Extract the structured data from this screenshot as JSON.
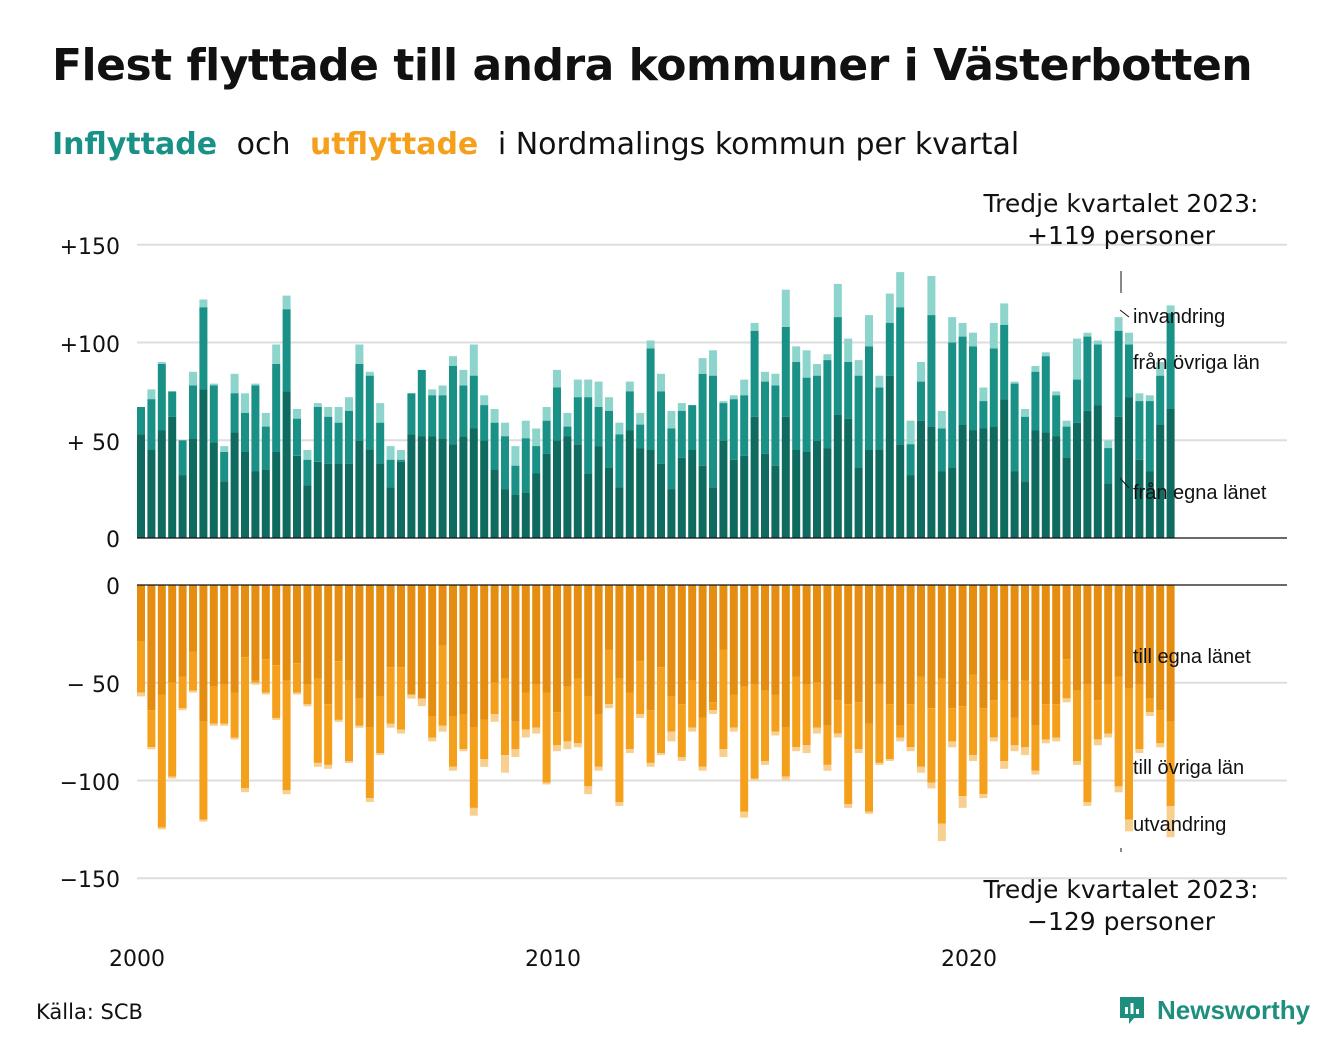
{
  "title": "Flest flyttade till andra kommuner i Västerbotten",
  "subtitle": {
    "in_word": "Inflyttade",
    "and_word": "och",
    "out_word": "utflyttade",
    "rest": "i Nordmalings kommun per kvartal"
  },
  "source": "Källa: SCB",
  "brand": "Newsworthy",
  "colors": {
    "in_own": "#0f6b5f",
    "in_other": "#199187",
    "in_immigration": "#8dd5cc",
    "out_own": "#e48d10",
    "out_other": "#f5a01c",
    "out_emigration": "#f7cf8f",
    "grid": "#dddddd",
    "in_text": "#199187",
    "out_text": "#f5a01c"
  },
  "chart_data": {
    "type": "bar",
    "stacked": true,
    "x_unit": "quarter",
    "first_quarter": "2000 Q1",
    "last_quarter": "2023 Q3",
    "xtick_labels": [
      "2000",
      "2010",
      "2020"
    ],
    "ytick_labels_in": [
      "0",
      "+ 50",
      "+100",
      "+150"
    ],
    "ytick_labels_out": [
      "0",
      "− 50",
      "−100",
      "−150"
    ],
    "ylim_in": [
      0,
      150
    ],
    "ylim_out": [
      -150,
      0
    ],
    "grid": true,
    "series_labels": {
      "in_immigration": "invandring",
      "in_other": "från övriga län",
      "in_own": "från egna länet",
      "out_own": "till egna länet",
      "out_other": "till övriga län",
      "out_emigration": "utvandring"
    },
    "annotations": {
      "in_line1": "Tredje kvartalet 2023:",
      "in_line2": "+119 personer",
      "out_line1": "Tredje kvartalet 2023:",
      "out_line2": "−129 personer"
    },
    "in_total": [
      67,
      76,
      90,
      75,
      50,
      85,
      122,
      79,
      47,
      84,
      74,
      79,
      64,
      99,
      124,
      66,
      45,
      69,
      67,
      67,
      72,
      99,
      85,
      69,
      47,
      45,
      74,
      86,
      76,
      78,
      93,
      86,
      99,
      73,
      66,
      59,
      47,
      60,
      56,
      67,
      86,
      64,
      81,
      81,
      80,
      72,
      59,
      80,
      64,
      101,
      84,
      65,
      69,
      68,
      92,
      96,
      70,
      73,
      81,
      110,
      85,
      84,
      127,
      98,
      96,
      89,
      94,
      130,
      102,
      91,
      114,
      83,
      125,
      136,
      60,
      90,
      134,
      65,
      113,
      110,
      105,
      77,
      110,
      120,
      80,
      66,
      88,
      95,
      75,
      60,
      102,
      105,
      101,
      50,
      113,
      105,
      74,
      73,
      90,
      119
    ],
    "in_other_top": [
      67,
      71,
      89,
      75,
      50,
      78,
      118,
      78,
      44,
      74,
      64,
      78,
      57,
      89,
      117,
      61,
      40,
      67,
      62,
      59,
      65,
      89,
      83,
      59,
      40,
      40,
      74,
      86,
      73,
      73,
      88,
      78,
      83,
      68,
      59,
      52,
      37,
      51,
      47,
      60,
      77,
      57,
      72,
      72,
      67,
      65,
      53,
      75,
      58,
      97,
      75,
      56,
      65,
      68,
      84,
      83,
      69,
      71,
      73,
      106,
      80,
      78,
      108,
      90,
      82,
      83,
      91,
      113,
      90,
      83,
      98,
      77,
      110,
      118,
      48,
      80,
      114,
      56,
      100,
      103,
      98,
      70,
      97,
      109,
      79,
      62,
      85,
      93,
      73,
      57,
      81,
      103,
      99,
      46,
      106,
      99,
      70,
      70,
      83,
      115
    ],
    "in_own": [
      53,
      45,
      55,
      62,
      32,
      51,
      76,
      49,
      29,
      54,
      44,
      34,
      35,
      44,
      75,
      42,
      27,
      39,
      38,
      38,
      38,
      50,
      45,
      38,
      26,
      39,
      53,
      52,
      52,
      51,
      48,
      52,
      56,
      50,
      35,
      25,
      22,
      23,
      33,
      43,
      50,
      52,
      48,
      33,
      47,
      36,
      26,
      55,
      46,
      45,
      38,
      25,
      41,
      45,
      37,
      26,
      50,
      40,
      42,
      62,
      43,
      37,
      62,
      45,
      44,
      50,
      46,
      63,
      61,
      36,
      45,
      45,
      83,
      48,
      32,
      60,
      57,
      34,
      36,
      58,
      55,
      56,
      57,
      71,
      34,
      29,
      55,
      54,
      52,
      41,
      59,
      65,
      68,
      28,
      62,
      72,
      40,
      34,
      58,
      66
    ],
    "out_total": [
      57,
      84,
      125,
      99,
      64,
      55,
      121,
      72,
      72,
      79,
      106,
      51,
      56,
      69,
      107,
      56,
      62,
      93,
      94,
      70,
      91,
      73,
      111,
      87,
      73,
      76,
      58,
      62,
      80,
      75,
      95,
      85,
      118,
      93,
      70,
      96,
      88,
      78,
      76,
      102,
      85,
      84,
      83,
      107,
      95,
      63,
      113,
      86,
      68,
      93,
      87,
      80,
      90,
      75,
      95,
      66,
      88,
      75,
      119,
      100,
      92,
      77,
      100,
      85,
      86,
      76,
      95,
      78,
      114,
      86,
      117,
      92,
      90,
      80,
      85,
      96,
      104,
      131,
      83,
      114,
      90,
      109,
      80,
      94,
      85,
      87,
      97,
      81,
      80,
      60,
      92,
      113,
      82,
      78,
      106,
      126,
      86,
      67,
      83,
      129
    ],
    "out_other_bottom": [
      55,
      83,
      124,
      98,
      63,
      54,
      120,
      71,
      71,
      78,
      104,
      50,
      55,
      68,
      105,
      55,
      61,
      91,
      92,
      69,
      90,
      72,
      109,
      86,
      71,
      74,
      56,
      58,
      78,
      72,
      93,
      84,
      114,
      89,
      66,
      87,
      84,
      74,
      73,
      101,
      82,
      80,
      81,
      103,
      93,
      61,
      111,
      84,
      66,
      91,
      86,
      75,
      88,
      73,
      93,
      64,
      84,
      73,
      116,
      99,
      90,
      75,
      98,
      83,
      82,
      73,
      92,
      76,
      112,
      84,
      116,
      91,
      89,
      78,
      83,
      93,
      101,
      122,
      80,
      108,
      87,
      107,
      78,
      90,
      82,
      83,
      95,
      79,
      78,
      58,
      90,
      111,
      79,
      76,
      103,
      120,
      84,
      65,
      81,
      113
    ],
    "out_own": [
      29,
      64,
      56,
      50,
      47,
      34,
      70,
      52,
      51,
      55,
      37,
      49,
      38,
      41,
      49,
      40,
      51,
      48,
      61,
      39,
      49,
      58,
      73,
      57,
      42,
      42,
      58,
      60,
      67,
      31,
      67,
      66,
      73,
      69,
      50,
      48,
      70,
      55,
      51,
      55,
      65,
      52,
      48,
      57,
      66,
      33,
      48,
      55,
      39,
      64,
      42,
      57,
      61,
      49,
      68,
      60,
      33,
      56,
      52,
      51,
      54,
      56,
      73,
      47,
      51,
      50,
      72,
      59,
      61,
      60,
      71,
      51,
      61,
      72,
      61,
      47,
      63,
      48,
      63,
      62,
      46,
      63,
      59,
      49,
      68,
      49,
      72,
      61,
      61,
      38,
      54,
      51,
      59,
      51,
      47,
      53,
      51,
      58,
      64,
      70
    ]
  }
}
